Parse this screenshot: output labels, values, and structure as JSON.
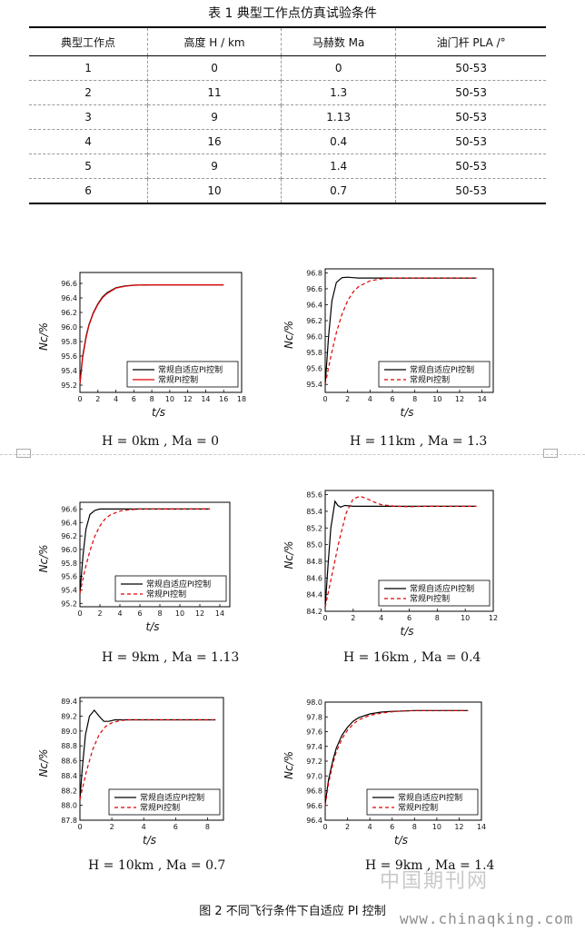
{
  "table": {
    "title": "表 1  典型工作点仿真试验条件",
    "headers": [
      "典型工作点",
      "高度 H / km",
      "马赫数 Ma",
      "油门杆 PLA /°"
    ],
    "rows": [
      [
        "1",
        "0",
        "0",
        "50-53"
      ],
      [
        "2",
        "11",
        "1.3",
        "50-53"
      ],
      [
        "3",
        "9",
        "1.13",
        "50-53"
      ],
      [
        "4",
        "16",
        "0.4",
        "50-53"
      ],
      [
        "5",
        "9",
        "1.4",
        "50-53"
      ],
      [
        "6",
        "10",
        "0.7",
        "50-53"
      ]
    ]
  },
  "chart_data": [
    {
      "type": "line",
      "caption": "H = 0km ,  Ma = 0",
      "xlabel": "t/s",
      "ylabel": "Nc/%",
      "xlim": [
        0,
        18
      ],
      "ylim": [
        95.1,
        96.75
      ],
      "xticks": [
        0,
        2,
        4,
        6,
        8,
        10,
        12,
        14,
        16,
        18
      ],
      "yticks": [
        95.2,
        95.4,
        95.6,
        95.8,
        96.0,
        96.2,
        96.4,
        96.6
      ],
      "series": [
        {
          "name": "常规自适应PI控制",
          "color": "#000000",
          "dash": false,
          "x": [
            0,
            0.3,
            0.7,
            1,
            1.5,
            2,
            2.5,
            3,
            4,
            5,
            6,
            8,
            10,
            16
          ],
          "y": [
            95.22,
            95.6,
            95.88,
            96.03,
            96.2,
            96.32,
            96.41,
            96.47,
            96.54,
            96.565,
            96.575,
            96.58,
            96.58,
            96.58
          ]
        },
        {
          "name": "常规PI控制",
          "color": "#e00000",
          "dash": false,
          "x": [
            0,
            0.3,
            0.7,
            1,
            1.5,
            2,
            2.5,
            3,
            4,
            5,
            6,
            8,
            10,
            16
          ],
          "y": [
            95.22,
            95.58,
            95.86,
            96.02,
            96.19,
            96.31,
            96.4,
            96.46,
            96.535,
            96.56,
            96.575,
            96.58,
            96.58,
            96.58
          ]
        }
      ]
    },
    {
      "type": "line",
      "caption": "H = 11km ,  Ma = 1.3",
      "xlabel": "t/s",
      "ylabel": "Nc/%",
      "xlim": [
        0,
        15
      ],
      "ylim": [
        95.3,
        96.85
      ],
      "xticks": [
        0,
        2,
        4,
        6,
        8,
        10,
        12,
        14
      ],
      "yticks": [
        95.4,
        95.6,
        95.8,
        96.0,
        96.2,
        96.4,
        96.6,
        96.8
      ],
      "series": [
        {
          "name": "常规自适应PI控制",
          "color": "#000000",
          "dash": false,
          "x": [
            0,
            0.3,
            0.6,
            1,
            1.5,
            2,
            2.5,
            3,
            4,
            13.5
          ],
          "y": [
            95.4,
            96.0,
            96.45,
            96.68,
            96.74,
            96.745,
            96.74,
            96.735,
            96.735,
            96.735
          ]
        },
        {
          "name": "常规PI控制",
          "color": "#e00000",
          "dash": true,
          "x": [
            0,
            0.5,
            1,
            1.5,
            2,
            2.5,
            3,
            4,
            5,
            6,
            8,
            13.5
          ],
          "y": [
            95.4,
            95.75,
            96.05,
            96.28,
            96.45,
            96.56,
            96.63,
            96.7,
            96.725,
            96.735,
            96.735,
            96.735
          ]
        }
      ]
    },
    {
      "type": "line",
      "caption": "H = 9km ,  Ma = 1.13",
      "xlabel": "t/s",
      "ylabel": "Nc/%",
      "xlim": [
        0,
        15
      ],
      "ylim": [
        95.15,
        96.7
      ],
      "xticks": [
        0,
        2,
        4,
        6,
        8,
        10,
        12,
        14
      ],
      "yticks": [
        95.2,
        95.4,
        95.6,
        95.8,
        96.0,
        96.2,
        96.4,
        96.6
      ],
      "series": [
        {
          "name": "常规自适应PI控制",
          "color": "#000000",
          "dash": false,
          "x": [
            0,
            0.3,
            0.6,
            1,
            1.5,
            2,
            2.5,
            3,
            4,
            13
          ],
          "y": [
            95.35,
            95.9,
            96.3,
            96.52,
            96.58,
            96.6,
            96.6,
            96.6,
            96.6,
            96.6
          ]
        },
        {
          "name": "常规PI控制",
          "color": "#e00000",
          "dash": true,
          "x": [
            0,
            0.5,
            1,
            1.5,
            2,
            2.5,
            3,
            4,
            5,
            6,
            8,
            13
          ],
          "y": [
            95.35,
            95.7,
            95.98,
            96.2,
            96.35,
            96.45,
            96.51,
            96.57,
            96.59,
            96.6,
            96.6,
            96.6
          ]
        }
      ]
    },
    {
      "type": "line",
      "caption": "H = 16km ,  Ma = 0.4",
      "xlabel": "t/s",
      "ylabel": "Nc/%",
      "xlim": [
        0,
        12
      ],
      "ylim": [
        84.2,
        85.65
      ],
      "xticks": [
        0,
        2,
        4,
        6,
        8,
        10,
        12
      ],
      "yticks": [
        84.2,
        84.4,
        84.6,
        84.8,
        85.0,
        85.2,
        85.4,
        85.6
      ],
      "series": [
        {
          "name": "常规自适应PI控制",
          "color": "#000000",
          "dash": false,
          "x": [
            0,
            0.2,
            0.4,
            0.7,
            0.9,
            1.1,
            1.4,
            2,
            3,
            4,
            10.8
          ],
          "y": [
            84.25,
            84.75,
            85.2,
            85.52,
            85.47,
            85.45,
            85.47,
            85.46,
            85.46,
            85.46,
            85.46
          ]
        },
        {
          "name": "常规PI控制",
          "color": "#e00000",
          "dash": true,
          "x": [
            0,
            0.5,
            1,
            1.5,
            2,
            2.5,
            3,
            3.5,
            4,
            5,
            6,
            7,
            10.8
          ],
          "y": [
            84.25,
            84.65,
            85.05,
            85.38,
            85.55,
            85.58,
            85.55,
            85.51,
            85.48,
            85.46,
            85.455,
            85.46,
            85.46
          ]
        }
      ]
    },
    {
      "type": "line",
      "caption": "H = 10km ,  Ma = 0.7",
      "xlabel": "t/s",
      "ylabel": "Nc/%",
      "xlim": [
        0,
        9
      ],
      "ylim": [
        87.8,
        89.45
      ],
      "xticks": [
        0,
        2,
        4,
        6,
        8
      ],
      "yticks": [
        87.8,
        88.0,
        88.2,
        88.4,
        88.6,
        88.8,
        89.0,
        89.2,
        89.4
      ],
      "series": [
        {
          "name": "常规自适应PI控制",
          "color": "#000000",
          "dash": false,
          "x": [
            0,
            0.15,
            0.35,
            0.6,
            0.9,
            1.2,
            1.5,
            1.8,
            2.2,
            3,
            4,
            8.5
          ],
          "y": [
            88.08,
            88.5,
            88.95,
            89.2,
            89.28,
            89.2,
            89.13,
            89.13,
            89.15,
            89.15,
            89.15,
            89.15
          ]
        },
        {
          "name": "常规PI控制",
          "color": "#e00000",
          "dash": true,
          "x": [
            0,
            0.4,
            0.8,
            1.2,
            1.6,
            2,
            2.5,
            3,
            4,
            5,
            8.5
          ],
          "y": [
            88.08,
            88.45,
            88.75,
            88.95,
            89.06,
            89.11,
            89.14,
            89.15,
            89.15,
            89.15,
            89.15
          ]
        }
      ]
    },
    {
      "type": "line",
      "caption": "H = 9km ,  Ma = 1.4",
      "xlabel": "t/s",
      "ylabel": "Nc/%",
      "xlim": [
        0,
        14
      ],
      "ylim": [
        96.4,
        98.0
      ],
      "xticks": [
        0,
        2,
        4,
        6,
        8,
        10,
        12,
        14
      ],
      "yticks": [
        96.4,
        96.6,
        96.8,
        97.0,
        97.2,
        97.4,
        97.6,
        97.8,
        98.0
      ],
      "series": [
        {
          "name": "常规自适应PI控制",
          "color": "#000000",
          "dash": false,
          "x": [
            0,
            0.3,
            0.7,
            1,
            1.5,
            2,
            2.5,
            3,
            4,
            5,
            6,
            7,
            8,
            12.8
          ],
          "y": [
            96.62,
            96.95,
            97.22,
            97.38,
            97.55,
            97.66,
            97.74,
            97.79,
            97.84,
            97.865,
            97.875,
            97.88,
            97.885,
            97.885
          ]
        },
        {
          "name": "常规PI控制",
          "color": "#e00000",
          "dash": true,
          "x": [
            0,
            0.3,
            0.7,
            1,
            1.5,
            2,
            2.5,
            3,
            4,
            5,
            6,
            7,
            8,
            12.8
          ],
          "y": [
            96.6,
            96.9,
            97.17,
            97.33,
            97.5,
            97.62,
            97.7,
            97.76,
            97.82,
            97.85,
            97.87,
            97.88,
            97.885,
            97.885
          ]
        }
      ]
    }
  ],
  "figure_caption": "图 2  不同飞行条件下自适应 PI 控制",
  "watermark_cn": "中国期刊网",
  "watermark_url": "www.chinaqking.com"
}
